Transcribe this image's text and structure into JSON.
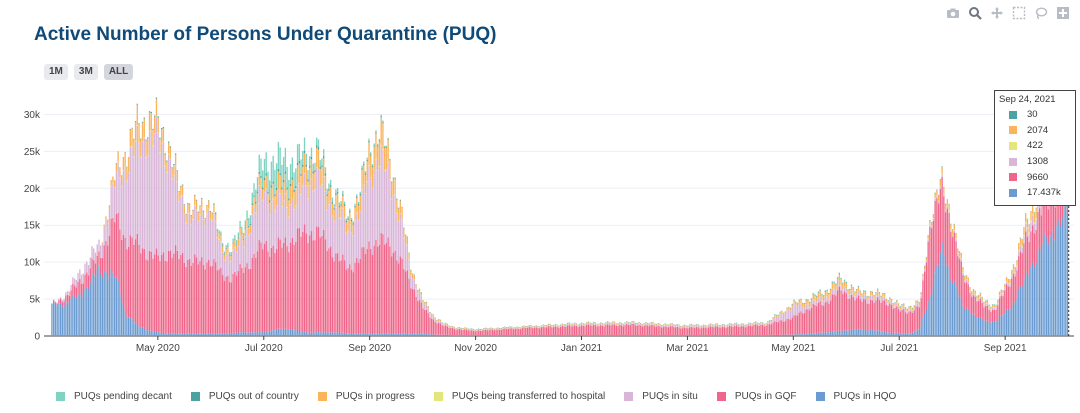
{
  "chart_data": {
    "type": "area",
    "stacked": true,
    "title": "Active Number of Persons Under Quarantine (PUQ)",
    "range_buttons": [
      "1M",
      "3M",
      "ALL"
    ],
    "active_range": "ALL",
    "x_ticks": [
      "May 2020",
      "Jul 2020",
      "Sep 2020",
      "Nov 2020",
      "Jan 2021",
      "Mar 2021",
      "May 2021",
      "Jul 2021",
      "Sep 2021"
    ],
    "x_tick_months": [
      2,
      4,
      6,
      8,
      10,
      12,
      14,
      16,
      18
    ],
    "y_ticks": [
      "0",
      "5k",
      "10k",
      "15k",
      "20k",
      "25k",
      "30k"
    ],
    "y_tick_values": [
      0,
      5000,
      10000,
      15000,
      20000,
      25000,
      30000
    ],
    "ylim": [
      0,
      32500
    ],
    "x_range_months": [
      -0.15,
      19.3
    ],
    "x_unit": "months since 2020-03-01",
    "legend_position": "bottom",
    "series": [
      {
        "name": "PUQs pending decant",
        "color": "#7fd3c2"
      },
      {
        "name": "PUQs out of country",
        "color": "#4aa3a0"
      },
      {
        "name": "PUQs in progress",
        "color": "#f9b45c"
      },
      {
        "name": "PUQs being transferred to hospital",
        "color": "#e4e57a"
      },
      {
        "name": "PUQs in situ",
        "color": "#d9b6d8"
      },
      {
        "name": "PUQs in GQF",
        "color": "#f0668a"
      },
      {
        "name": "PUQs in HQO",
        "color": "#6b9bd1"
      }
    ],
    "stack_order_bottom_to_top": [
      "PUQs in HQO",
      "PUQs in GQF",
      "PUQs in situ",
      "PUQs being transferred to hospital",
      "PUQs in progress",
      "PUQs out of country",
      "PUQs pending decant"
    ],
    "keyframes_month": [
      0,
      0.3,
      0.6,
      0.9,
      1.2,
      1.4,
      1.6,
      1.8,
      2.0,
      2.2,
      2.4,
      2.6,
      2.8,
      3.0,
      3.2,
      3.4,
      3.6,
      3.8,
      4.0,
      4.2,
      4.4,
      4.6,
      4.8,
      5.0,
      5.2,
      5.4,
      5.6,
      5.8,
      6.0,
      6.2,
      6.4,
      6.6,
      6.8,
      7.0,
      7.2,
      7.4,
      7.6,
      7.8,
      8.0,
      8.5,
      9.0,
      10.0,
      11.0,
      12.0,
      13.0,
      13.5,
      14.0,
      14.3,
      14.6,
      14.9,
      15.2,
      15.5,
      15.8,
      16.0,
      16.2,
      16.4,
      16.6,
      16.8,
      17.0,
      17.2,
      17.4,
      17.6,
      17.8,
      18.0,
      18.2,
      18.4,
      18.6,
      18.8,
      19.0,
      19.2
    ],
    "keyframes_values": {
      "PUQs in HQO": [
        4200,
        4500,
        6000,
        9000,
        8000,
        3000,
        1500,
        800,
        500,
        400,
        300,
        300,
        300,
        300,
        300,
        400,
        500,
        500,
        500,
        800,
        1000,
        800,
        500,
        500,
        500,
        500,
        300,
        300,
        300,
        300,
        300,
        300,
        300,
        300,
        200,
        150,
        100,
        100,
        100,
        100,
        100,
        100,
        100,
        100,
        100,
        100,
        200,
        300,
        500,
        700,
        900,
        800,
        500,
        400,
        300,
        1000,
        6000,
        11500,
        8000,
        4000,
        3000,
        2000,
        2000,
        3000,
        5000,
        8000,
        11000,
        13000,
        15000,
        17437
      ],
      "PUQs in GQF": [
        0,
        1000,
        2000,
        1800,
        8000,
        10000,
        11000,
        10500,
        10000,
        11000,
        10500,
        10000,
        9500,
        10000,
        8000,
        7500,
        8500,
        10000,
        12000,
        11000,
        11500,
        12500,
        13500,
        13500,
        12000,
        10000,
        9000,
        10000,
        12000,
        12500,
        12000,
        9500,
        6500,
        3500,
        2000,
        1200,
        900,
        700,
        600,
        800,
        1000,
        1300,
        1400,
        1000,
        1200,
        1400,
        2300,
        3500,
        4000,
        5500,
        4000,
        4000,
        4000,
        3000,
        3000,
        3000,
        10000,
        8000,
        7000,
        4000,
        2500,
        2000,
        1500,
        3000,
        4000,
        5000,
        5000,
        5000,
        5000,
        9660
      ],
      "PUQs in situ": [
        0,
        500,
        1500,
        1500,
        5000,
        10000,
        13000,
        15500,
        16000,
        13000,
        8000,
        6000,
        6000,
        7000,
        3000,
        3000,
        3500,
        6000,
        7000,
        6000,
        5500,
        5000,
        6500,
        7500,
        6000,
        6000,
        5000,
        6000,
        10000,
        11000,
        9000,
        5000,
        1500,
        800,
        400,
        200,
        100,
        100,
        100,
        100,
        100,
        200,
        200,
        200,
        200,
        200,
        1500,
        500,
        700,
        700,
        500,
        600,
        400,
        300,
        300,
        300,
        300,
        300,
        300,
        300,
        300,
        300,
        300,
        300,
        500,
        1000,
        1500,
        1500,
        1500,
        1308
      ],
      "PUQs being transferred to hospital": [
        0,
        0,
        0,
        0,
        50,
        80,
        100,
        100,
        100,
        100,
        80,
        80,
        80,
        80,
        80,
        80,
        80,
        80,
        80,
        80,
        80,
        80,
        80,
        80,
        80,
        80,
        80,
        80,
        80,
        80,
        80,
        60,
        40,
        20,
        10,
        10,
        10,
        10,
        10,
        10,
        10,
        10,
        10,
        10,
        10,
        10,
        10,
        20,
        30,
        40,
        40,
        40,
        40,
        40,
        50,
        60,
        100,
        100,
        100,
        80,
        60,
        60,
        60,
        80,
        100,
        200,
        300,
        300,
        400,
        422
      ],
      "PUQs in progress": [
        0,
        0,
        0,
        0,
        1000,
        2000,
        2500,
        2500,
        2000,
        1500,
        1300,
        1200,
        1100,
        1000,
        800,
        800,
        1000,
        1200,
        1500,
        2000,
        2500,
        2500,
        2500,
        2500,
        2000,
        1500,
        1500,
        2000,
        3000,
        3500,
        2500,
        1500,
        600,
        300,
        200,
        100,
        100,
        100,
        100,
        100,
        100,
        100,
        100,
        100,
        100,
        100,
        300,
        600,
        700,
        800,
        500,
        400,
        300,
        300,
        300,
        300,
        400,
        800,
        700,
        500,
        400,
        300,
        300,
        400,
        700,
        1000,
        1500,
        1800,
        2000,
        2074
      ],
      "PUQs out of country": [
        0,
        0,
        0,
        0,
        0,
        50,
        100,
        150,
        150,
        150,
        100,
        100,
        100,
        100,
        100,
        100,
        100,
        200,
        300,
        300,
        300,
        300,
        300,
        300,
        250,
        200,
        200,
        200,
        200,
        150,
        100,
        80,
        60,
        40,
        30,
        20,
        20,
        20,
        20,
        20,
        20,
        40,
        40,
        40,
        40,
        40,
        60,
        80,
        80,
        80,
        60,
        60,
        60,
        50,
        50,
        50,
        60,
        60,
        60,
        50,
        40,
        40,
        40,
        40,
        40,
        40,
        40,
        40,
        30,
        30
      ],
      "PUQs pending decant": [
        0,
        0,
        0,
        0,
        0,
        0,
        0,
        0,
        0,
        0,
        0,
        0,
        0,
        0,
        300,
        500,
        800,
        1500,
        2500,
        3500,
        3000,
        2500,
        1500,
        1000,
        800,
        500,
        300,
        300,
        300,
        200,
        100,
        50,
        30,
        20,
        10,
        10,
        10,
        10,
        10,
        10,
        10,
        20,
        20,
        20,
        20,
        20,
        50,
        100,
        100,
        100,
        80,
        60,
        60,
        50,
        50,
        50,
        50,
        50,
        50,
        50,
        50,
        50,
        50,
        50,
        50,
        50,
        50,
        50,
        30,
        0
      ]
    },
    "hover": {
      "date": "Sep 24, 2021",
      "rows": [
        {
          "label": "30",
          "color": "#4aa3a0"
        },
        {
          "label": "2074",
          "color": "#f9b45c"
        },
        {
          "label": "422",
          "color": "#e4e57a"
        },
        {
          "label": "1308",
          "color": "#d9b6d8"
        },
        {
          "label": "9660",
          "color": "#f0668a"
        },
        {
          "label": "17.437k",
          "color": "#6b9bd1"
        }
      ]
    }
  },
  "modebar": {
    "icons": [
      "camera-icon",
      "zoom-icon",
      "pan-icon",
      "box-select-icon",
      "lasso-icon",
      "plus-icon"
    ],
    "colors": {
      "normal": "#b8bcc4",
      "active": "#8b919b"
    }
  }
}
